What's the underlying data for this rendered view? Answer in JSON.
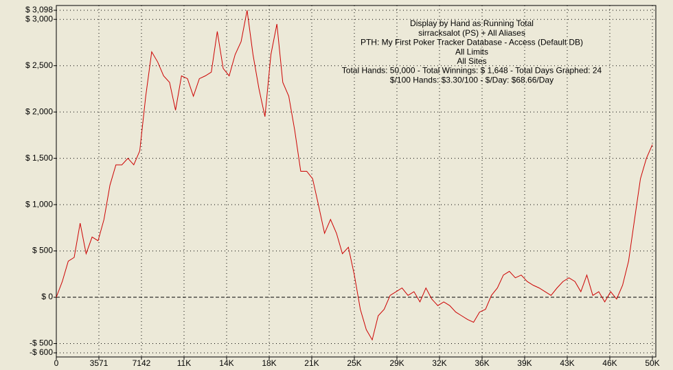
{
  "chart_data": {
    "type": "line",
    "title": "Display by Hand as Running Total",
    "subtitle_lines": [
      "sirracksalot (PS) + All Aliases",
      "PTH: My First Poker Tracker Database - Access (Default DB)",
      "All Limits",
      "All Sites",
      "Total Hands: 50,000 - Total Winnings: $ 1,648 - Total Days Graphed: 24",
      "$/100 Hands: $3.30/100 - $/Day: $68.66/Day"
    ],
    "x": [
      0,
      500,
      1000,
      1500,
      2000,
      2500,
      3000,
      3500,
      4000,
      4500,
      5000,
      5500,
      6000,
      6500,
      7000,
      7500,
      8000,
      8500,
      9000,
      9500,
      10000,
      10500,
      11000,
      11500,
      12000,
      12500,
      13000,
      13500,
      14000,
      14500,
      15000,
      15500,
      16000,
      16500,
      17000,
      17500,
      18000,
      18500,
      19000,
      19500,
      20000,
      20500,
      21000,
      21500,
      22000,
      22500,
      23000,
      23500,
      24000,
      24500,
      25000,
      25500,
      26000,
      26500,
      27000,
      27500,
      28000,
      28500,
      29000,
      29500,
      30000,
      30500,
      31000,
      31500,
      32000,
      32500,
      33000,
      33500,
      34000,
      34500,
      35000,
      35500,
      36000,
      36500,
      37000,
      37500,
      38000,
      38500,
      39000,
      39500,
      40000,
      40500,
      41000,
      41500,
      42000,
      42500,
      43000,
      43500,
      44000,
      44500,
      45000,
      45500,
      46000,
      46500,
      47000,
      47500,
      48000,
      48500,
      49000,
      49500,
      50000
    ],
    "series": [
      {
        "color": "#cc0000",
        "values": [
          0,
          170,
          390,
          430,
          800,
          470,
          650,
          610,
          840,
          1210,
          1430,
          1430,
          1500,
          1430,
          1580,
          2170,
          2650,
          2540,
          2390,
          2320,
          2020,
          2390,
          2360,
          2170,
          2360,
          2390,
          2430,
          2870,
          2470,
          2390,
          2620,
          2760,
          3098,
          2620,
          2250,
          1950,
          2620,
          2950,
          2320,
          2170,
          1800,
          1360,
          1360,
          1280,
          990,
          690,
          840,
          690,
          470,
          540,
          240,
          -130,
          -350,
          -460,
          -200,
          -130,
          20,
          60,
          100,
          20,
          60,
          -50,
          100,
          -20,
          -90,
          -50,
          -90,
          -160,
          -200,
          -240,
          -270,
          -160,
          -130,
          20,
          100,
          240,
          280,
          210,
          240,
          170,
          130,
          100,
          60,
          20,
          100,
          170,
          210,
          170,
          60,
          240,
          20,
          60,
          -50,
          60,
          -20,
          130,
          390,
          840,
          1280,
          1500,
          1648
        ]
      }
    ],
    "xlim": [
      0,
      50000
    ],
    "xticks": [
      0,
      3571,
      7142,
      {
        "value": 10714,
        "label": "11K"
      },
      {
        "value": 14285,
        "label": "14K"
      },
      {
        "value": 17857,
        "label": "18K"
      },
      {
        "value": 21428,
        "label": "21K"
      },
      {
        "value": 25000,
        "label": "25K"
      },
      {
        "value": 28571,
        "label": "29K"
      },
      {
        "value": 32142,
        "label": "32K"
      },
      {
        "value": 35714,
        "label": "36K"
      },
      {
        "value": 39285,
        "label": "39K"
      },
      {
        "value": 42857,
        "label": "43K"
      },
      {
        "value": 46428,
        "label": "46K"
      },
      {
        "value": 50000,
        "label": "50K"
      }
    ],
    "ylim": [
      -600,
      3098
    ],
    "yticks": [
      {
        "value": 3098,
        "label": "$ 3,098"
      },
      {
        "value": 3000,
        "label": "$ 3,000"
      },
      {
        "value": 2500,
        "label": "$ 2,500"
      },
      {
        "value": 2000,
        "label": "$ 2,000"
      },
      {
        "value": 1500,
        "label": "$ 1,500"
      },
      {
        "value": 1000,
        "label": "$ 1,000"
      },
      {
        "value": 500,
        "label": "$ 500"
      },
      {
        "value": 0,
        "label": "$ 0"
      },
      {
        "value": -500,
        "label": "-$ 500"
      },
      {
        "value": -600,
        "label": "-$ 600"
      }
    ],
    "grid": true
  }
}
